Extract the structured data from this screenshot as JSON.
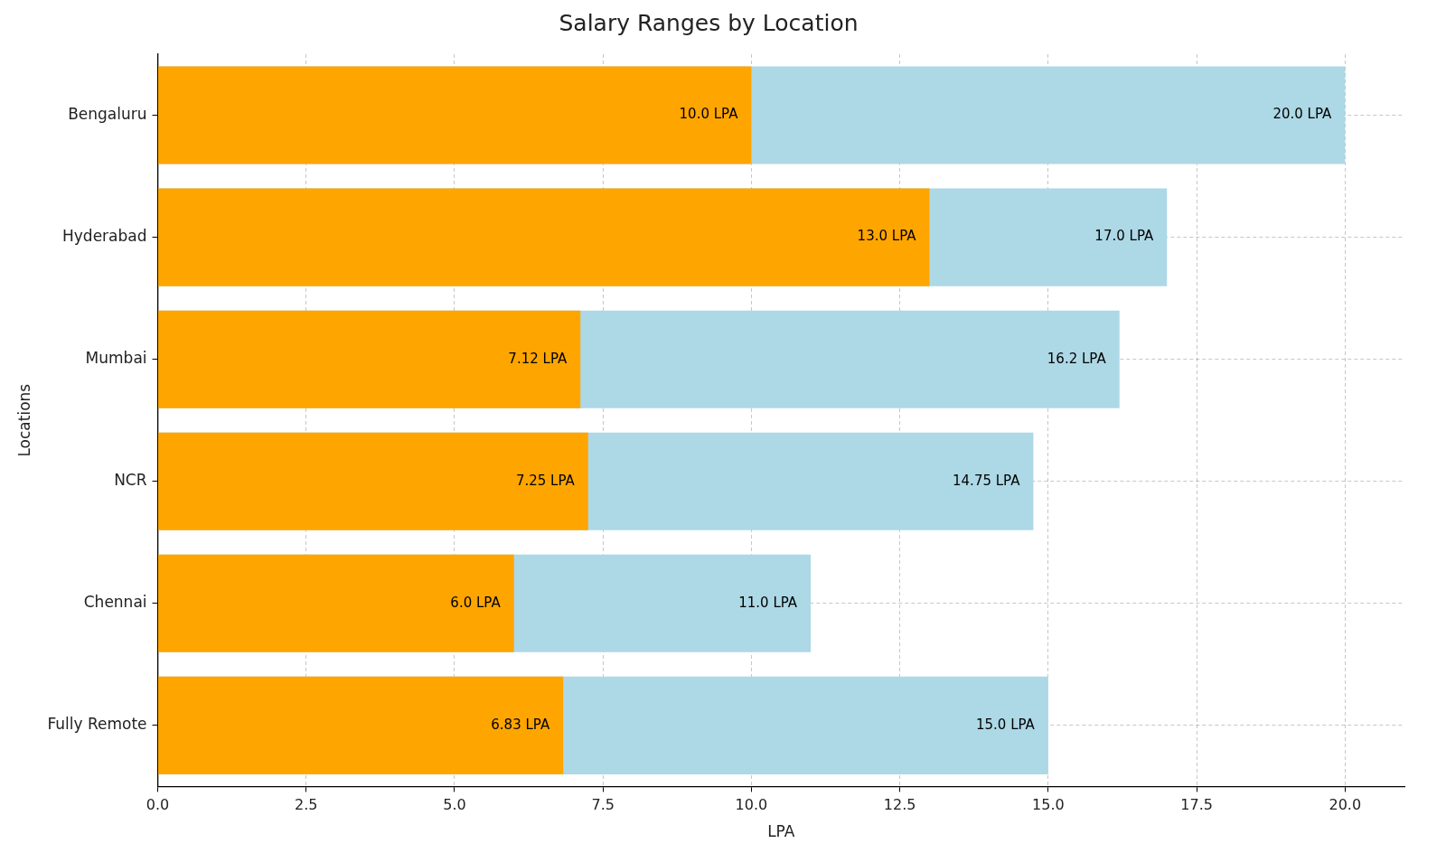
{
  "chart_data": {
    "type": "bar",
    "title": "Salary Ranges by Location",
    "x_label": "LPA",
    "y_label": "Locations",
    "orientation": "horizontal",
    "categories": [
      "Bengaluru",
      "Hyderabad",
      "Mumbai",
      "NCR",
      "Chennai",
      "Fully Remote"
    ],
    "series": [
      {
        "color": "#ffa500",
        "values": [
          10.0,
          13.0,
          7.12,
          7.25,
          6.0,
          6.83
        ],
        "value_labels": [
          "10.0 LPA",
          "13.0 LPA",
          "7.12 LPA",
          "7.25 LPA",
          "6.0 LPA",
          "6.83 LPA"
        ]
      },
      {
        "color": "#add8e6",
        "values": [
          20.0,
          17.0,
          16.2,
          14.75,
          11.0,
          15.0
        ],
        "value_labels": [
          "20.0 LPA",
          "17.0 LPA",
          "16.2 LPA",
          "14.75 LPA",
          "11.0 LPA",
          "15.0 LPA"
        ]
      }
    ],
    "xlim": [
      0,
      21
    ],
    "xticks": [
      {
        "value": 0,
        "label": "0.0"
      },
      2.5,
      {
        "value": 5,
        "label": "5.0"
      },
      7.5,
      {
        "value": 10,
        "label": "10.0"
      },
      12.5,
      {
        "value": 15,
        "label": "15.0"
      },
      17.5,
      {
        "value": 20,
        "label": "20.0"
      }
    ],
    "grid": true,
    "data_labels": true
  }
}
